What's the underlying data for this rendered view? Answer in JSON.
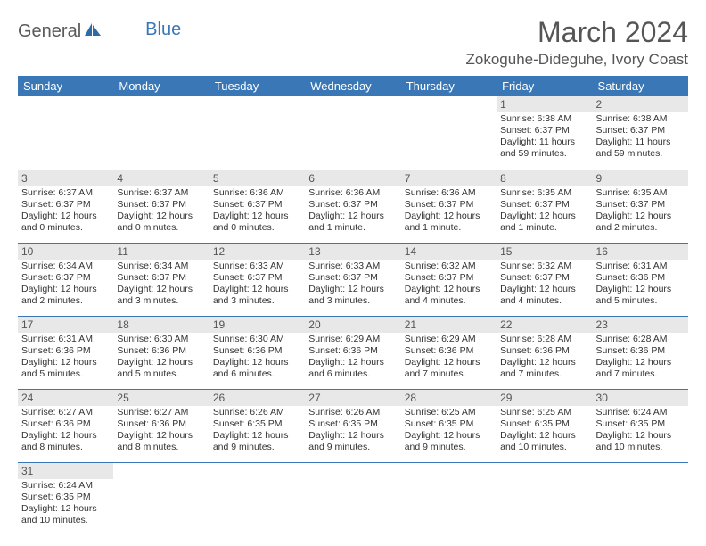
{
  "logo": {
    "part1": "General",
    "part2": "Blue"
  },
  "title": "March 2024",
  "location": "Zokoguhe-Dideguhe, Ivory Coast",
  "day_headers": [
    "Sunday",
    "Monday",
    "Tuesday",
    "Wednesday",
    "Thursday",
    "Friday",
    "Saturday"
  ],
  "colors": {
    "header_bg": "#3a77b7",
    "header_text": "#ffffff",
    "daynum_bg": "#e8e8e8",
    "border": "#3a77b7",
    "logo_gray": "#5a5a5a",
    "logo_blue": "#3a77b7",
    "title_color": "#555555"
  },
  "fonts": {
    "title_size_pt": 32,
    "location_size_pt": 17,
    "header_size_pt": 13,
    "daynum_size_pt": 12,
    "detail_size_pt": 10.5
  },
  "weeks": [
    [
      {
        "blank": true
      },
      {
        "blank": true
      },
      {
        "blank": true
      },
      {
        "blank": true
      },
      {
        "blank": true
      },
      {
        "n": "1",
        "sunrise": "Sunrise: 6:38 AM",
        "sunset": "Sunset: 6:37 PM",
        "daylight": "Daylight: 11 hours and 59 minutes."
      },
      {
        "n": "2",
        "sunrise": "Sunrise: 6:38 AM",
        "sunset": "Sunset: 6:37 PM",
        "daylight": "Daylight: 11 hours and 59 minutes."
      }
    ],
    [
      {
        "n": "3",
        "sunrise": "Sunrise: 6:37 AM",
        "sunset": "Sunset: 6:37 PM",
        "daylight": "Daylight: 12 hours and 0 minutes."
      },
      {
        "n": "4",
        "sunrise": "Sunrise: 6:37 AM",
        "sunset": "Sunset: 6:37 PM",
        "daylight": "Daylight: 12 hours and 0 minutes."
      },
      {
        "n": "5",
        "sunrise": "Sunrise: 6:36 AM",
        "sunset": "Sunset: 6:37 PM",
        "daylight": "Daylight: 12 hours and 0 minutes."
      },
      {
        "n": "6",
        "sunrise": "Sunrise: 6:36 AM",
        "sunset": "Sunset: 6:37 PM",
        "daylight": "Daylight: 12 hours and 1 minute."
      },
      {
        "n": "7",
        "sunrise": "Sunrise: 6:36 AM",
        "sunset": "Sunset: 6:37 PM",
        "daylight": "Daylight: 12 hours and 1 minute."
      },
      {
        "n": "8",
        "sunrise": "Sunrise: 6:35 AM",
        "sunset": "Sunset: 6:37 PM",
        "daylight": "Daylight: 12 hours and 1 minute."
      },
      {
        "n": "9",
        "sunrise": "Sunrise: 6:35 AM",
        "sunset": "Sunset: 6:37 PM",
        "daylight": "Daylight: 12 hours and 2 minutes."
      }
    ],
    [
      {
        "n": "10",
        "sunrise": "Sunrise: 6:34 AM",
        "sunset": "Sunset: 6:37 PM",
        "daylight": "Daylight: 12 hours and 2 minutes."
      },
      {
        "n": "11",
        "sunrise": "Sunrise: 6:34 AM",
        "sunset": "Sunset: 6:37 PM",
        "daylight": "Daylight: 12 hours and 3 minutes."
      },
      {
        "n": "12",
        "sunrise": "Sunrise: 6:33 AM",
        "sunset": "Sunset: 6:37 PM",
        "daylight": "Daylight: 12 hours and 3 minutes."
      },
      {
        "n": "13",
        "sunrise": "Sunrise: 6:33 AM",
        "sunset": "Sunset: 6:37 PM",
        "daylight": "Daylight: 12 hours and 3 minutes."
      },
      {
        "n": "14",
        "sunrise": "Sunrise: 6:32 AM",
        "sunset": "Sunset: 6:37 PM",
        "daylight": "Daylight: 12 hours and 4 minutes."
      },
      {
        "n": "15",
        "sunrise": "Sunrise: 6:32 AM",
        "sunset": "Sunset: 6:37 PM",
        "daylight": "Daylight: 12 hours and 4 minutes."
      },
      {
        "n": "16",
        "sunrise": "Sunrise: 6:31 AM",
        "sunset": "Sunset: 6:36 PM",
        "daylight": "Daylight: 12 hours and 5 minutes."
      }
    ],
    [
      {
        "n": "17",
        "sunrise": "Sunrise: 6:31 AM",
        "sunset": "Sunset: 6:36 PM",
        "daylight": "Daylight: 12 hours and 5 minutes."
      },
      {
        "n": "18",
        "sunrise": "Sunrise: 6:30 AM",
        "sunset": "Sunset: 6:36 PM",
        "daylight": "Daylight: 12 hours and 5 minutes."
      },
      {
        "n": "19",
        "sunrise": "Sunrise: 6:30 AM",
        "sunset": "Sunset: 6:36 PM",
        "daylight": "Daylight: 12 hours and 6 minutes."
      },
      {
        "n": "20",
        "sunrise": "Sunrise: 6:29 AM",
        "sunset": "Sunset: 6:36 PM",
        "daylight": "Daylight: 12 hours and 6 minutes."
      },
      {
        "n": "21",
        "sunrise": "Sunrise: 6:29 AM",
        "sunset": "Sunset: 6:36 PM",
        "daylight": "Daylight: 12 hours and 7 minutes."
      },
      {
        "n": "22",
        "sunrise": "Sunrise: 6:28 AM",
        "sunset": "Sunset: 6:36 PM",
        "daylight": "Daylight: 12 hours and 7 minutes."
      },
      {
        "n": "23",
        "sunrise": "Sunrise: 6:28 AM",
        "sunset": "Sunset: 6:36 PM",
        "daylight": "Daylight: 12 hours and 7 minutes."
      }
    ],
    [
      {
        "n": "24",
        "sunrise": "Sunrise: 6:27 AM",
        "sunset": "Sunset: 6:36 PM",
        "daylight": "Daylight: 12 hours and 8 minutes."
      },
      {
        "n": "25",
        "sunrise": "Sunrise: 6:27 AM",
        "sunset": "Sunset: 6:36 PM",
        "daylight": "Daylight: 12 hours and 8 minutes."
      },
      {
        "n": "26",
        "sunrise": "Sunrise: 6:26 AM",
        "sunset": "Sunset: 6:35 PM",
        "daylight": "Daylight: 12 hours and 9 minutes."
      },
      {
        "n": "27",
        "sunrise": "Sunrise: 6:26 AM",
        "sunset": "Sunset: 6:35 PM",
        "daylight": "Daylight: 12 hours and 9 minutes."
      },
      {
        "n": "28",
        "sunrise": "Sunrise: 6:25 AM",
        "sunset": "Sunset: 6:35 PM",
        "daylight": "Daylight: 12 hours and 9 minutes."
      },
      {
        "n": "29",
        "sunrise": "Sunrise: 6:25 AM",
        "sunset": "Sunset: 6:35 PM",
        "daylight": "Daylight: 12 hours and 10 minutes."
      },
      {
        "n": "30",
        "sunrise": "Sunrise: 6:24 AM",
        "sunset": "Sunset: 6:35 PM",
        "daylight": "Daylight: 12 hours and 10 minutes."
      }
    ],
    [
      {
        "n": "31",
        "sunrise": "Sunrise: 6:24 AM",
        "sunset": "Sunset: 6:35 PM",
        "daylight": "Daylight: 12 hours and 10 minutes."
      },
      {
        "blank": true
      },
      {
        "blank": true
      },
      {
        "blank": true
      },
      {
        "blank": true
      },
      {
        "blank": true
      },
      {
        "blank": true
      }
    ]
  ]
}
